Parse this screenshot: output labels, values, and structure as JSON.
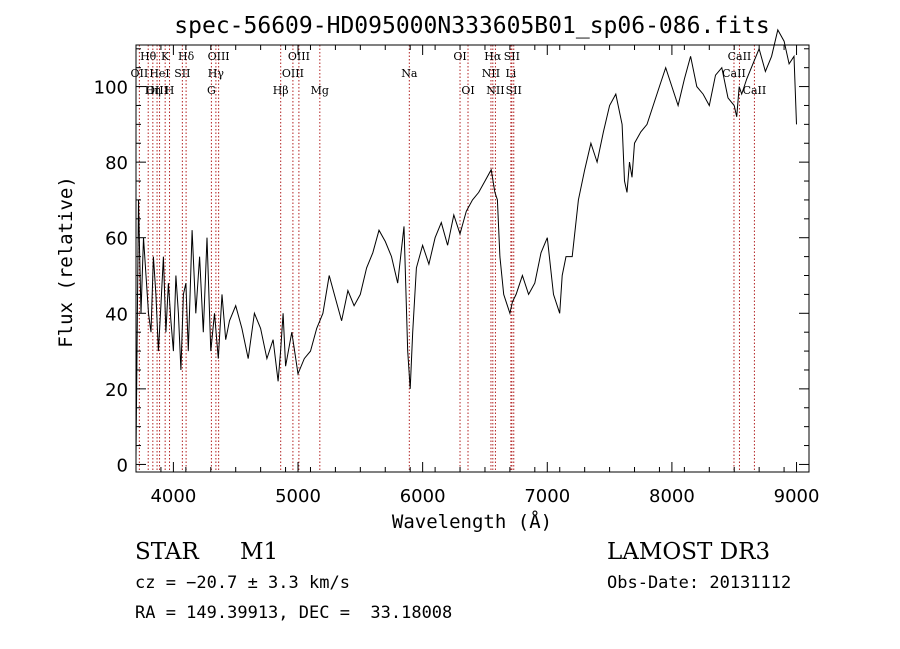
{
  "chart_data": {
    "type": "line",
    "title": "spec-56609-HD095000N333605B01_sp06-086.fits",
    "xlabel": "Wavelength (Å)",
    "ylabel": "Flux (relative)",
    "xlim": [
      3700,
      9100
    ],
    "ylim": [
      -2,
      111
    ],
    "xticks": [
      4000,
      5000,
      6000,
      7000,
      8000,
      9000
    ],
    "yticks": [
      0,
      20,
      40,
      60,
      80,
      100
    ],
    "grid": false,
    "line_color": "#000000",
    "marker_color": "#b22222",
    "series": [
      {
        "x": [
          3700,
          3710,
          3720,
          3730,
          3740,
          3760,
          3780,
          3800,
          3820,
          3840,
          3860,
          3880,
          3900,
          3920,
          3940,
          3960,
          3980,
          4000,
          4020,
          4040,
          4060,
          4080,
          4100,
          4120,
          4150,
          4180,
          4210,
          4240,
          4270,
          4300,
          4330,
          4360,
          4390,
          4420,
          4450,
          4500,
          4550,
          4600,
          4650,
          4700,
          4750,
          4800,
          4840,
          4860,
          4880,
          4900,
          4950,
          5000,
          5050,
          5100,
          5150,
          5200,
          5250,
          5300,
          5350,
          5400,
          5450,
          5500,
          5550,
          5600,
          5650,
          5700,
          5750,
          5800,
          5850,
          5880,
          5900,
          5920,
          5950,
          6000,
          6050,
          6100,
          6150,
          6200,
          6250,
          6300,
          6350,
          6400,
          6450,
          6500,
          6550,
          6580,
          6600,
          6620,
          6650,
          6680,
          6700,
          6720,
          6750,
          6800,
          6850,
          6900,
          6950,
          7000,
          7050,
          7100,
          7120,
          7150,
          7200,
          7250,
          7300,
          7350,
          7400,
          7450,
          7500,
          7550,
          7600,
          7620,
          7640,
          7660,
          7680,
          7700,
          7750,
          7800,
          7850,
          7900,
          7950,
          8000,
          8050,
          8100,
          8150,
          8200,
          8250,
          8300,
          8350,
          8400,
          8450,
          8500,
          8520,
          8540,
          8560,
          8600,
          8650,
          8700,
          8750,
          8800,
          8850,
          8900,
          8940,
          8980,
          9000
        ],
        "y": [
          2,
          35,
          70,
          55,
          40,
          60,
          50,
          40,
          35,
          55,
          45,
          30,
          42,
          55,
          35,
          48,
          38,
          30,
          50,
          40,
          25,
          45,
          48,
          30,
          62,
          40,
          55,
          35,
          60,
          30,
          40,
          28,
          45,
          33,
          38,
          42,
          36,
          28,
          40,
          36,
          28,
          33,
          22,
          30,
          40,
          26,
          35,
          24,
          28,
          30,
          36,
          40,
          50,
          44,
          38,
          46,
          42,
          45,
          52,
          56,
          62,
          59,
          55,
          48,
          63,
          30,
          20,
          35,
          52,
          58,
          53,
          60,
          64,
          58,
          66,
          61,
          67,
          70,
          72,
          75,
          78,
          72,
          70,
          55,
          45,
          42,
          40,
          43,
          45,
          50,
          45,
          48,
          56,
          60,
          45,
          40,
          50,
          55,
          55,
          70,
          78,
          85,
          80,
          88,
          95,
          98,
          90,
          75,
          72,
          80,
          76,
          85,
          88,
          90,
          95,
          100,
          105,
          100,
          95,
          102,
          108,
          100,
          98,
          95,
          103,
          105,
          97,
          95,
          92,
          100,
          98,
          102,
          106,
          110,
          104,
          108,
          115,
          112,
          106,
          108,
          90
        ]
      }
    ],
    "line_markers": [
      {
        "label": "Hθ",
        "wavelength": 3798,
        "row": 0
      },
      {
        "label": "OII",
        "wavelength": 3727,
        "row": 1
      },
      {
        "label": "OIII",
        "wavelength": 3869,
        "row": 2
      },
      {
        "label": "K",
        "wavelength": 3934,
        "row": 0
      },
      {
        "label": "HeI",
        "wavelength": 3889,
        "row": 1
      },
      {
        "label": "Hη",
        "wavelength": 3835,
        "row": 2
      },
      {
        "label": "SII",
        "wavelength": 4072,
        "row": 1
      },
      {
        "label": "H",
        "wavelength": 3969,
        "row": 2
      },
      {
        "label": "Hδ",
        "wavelength": 4102,
        "row": 0
      },
      {
        "label": "OIII",
        "wavelength": 4363,
        "row": 0
      },
      {
        "label": "Hγ",
        "wavelength": 4341,
        "row": 1
      },
      {
        "label": "G",
        "wavelength": 4305,
        "row": 2
      },
      {
        "label": "OIII",
        "wavelength": 5007,
        "row": 0
      },
      {
        "label": "OIII",
        "wavelength": 4959,
        "row": 1
      },
      {
        "label": "Hβ",
        "wavelength": 4861,
        "row": 2
      },
      {
        "label": "Mg",
        "wavelength": 5175,
        "row": 2
      },
      {
        "label": "Na",
        "wavelength": 5893,
        "row": 1
      },
      {
        "label": "OI",
        "wavelength": 6300,
        "row": 0
      },
      {
        "label": "OI",
        "wavelength": 6364,
        "row": 2
      },
      {
        "label": "Hα",
        "wavelength": 6563,
        "row": 0
      },
      {
        "label": "SII",
        "wavelength": 6716,
        "row": 0
      },
      {
        "label": "NII",
        "wavelength": 6548,
        "row": 1
      },
      {
        "label": "Li",
        "wavelength": 6708,
        "row": 1
      },
      {
        "label": "NII",
        "wavelength": 6584,
        "row": 2
      },
      {
        "label": "SII",
        "wavelength": 6731,
        "row": 2
      },
      {
        "label": "CaII",
        "wavelength": 8542,
        "row": 0
      },
      {
        "label": "CaII",
        "wavelength": 8498,
        "row": 1
      },
      {
        "label": "CaII",
        "wavelength": 8662,
        "row": 2
      }
    ]
  },
  "info": {
    "obj_class": "STAR",
    "subclass": "M1",
    "survey": "LAMOST DR3",
    "cz": "cz = −20.7 ± 3.3 km/s",
    "obs_date": "Obs-Date: 20131112",
    "radec": "RA = 149.39913, DEC =  33.18008"
  }
}
